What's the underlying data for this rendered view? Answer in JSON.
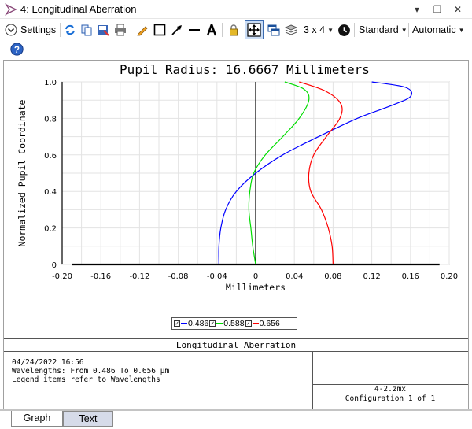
{
  "window": {
    "title": "4: Longitudinal Aberration",
    "controls": {
      "dropdown": "▾",
      "restore": "❐",
      "close": "✕"
    }
  },
  "toolbar": {
    "settings_label": "Settings",
    "layout_label": "3 x 4",
    "style_label": "Standard",
    "scale_label": "Automatic",
    "icons": [
      "settings-chevron",
      "refresh",
      "copy",
      "save",
      "print",
      "pencil",
      "rectangle",
      "arrow",
      "line",
      "text",
      "lock",
      "fit-window",
      "windows",
      "layers",
      "layout-grid",
      "clock",
      "help"
    ]
  },
  "chart_data": {
    "type": "line",
    "title": "Pupil Radius: 16.6667 Millimeters",
    "xlabel": "Millimeters",
    "ylabel": "Normalized Pupil Coordinate",
    "xlim": [
      -0.2,
      0.2
    ],
    "ylim": [
      0,
      1.0
    ],
    "xticks": [
      "-0.20",
      "-0.16",
      "-0.12",
      "-0.08",
      "-0.04",
      "0",
      "0.04",
      "0.08",
      "0.12",
      "0.16",
      "0.20"
    ],
    "yticks": [
      "0",
      "0.2",
      "0.4",
      "0.6",
      "0.8",
      "1.0"
    ],
    "grid": true,
    "legend_position": "bottom-center",
    "series": [
      {
        "name": "0.486",
        "color": "#0000ff",
        "points": [
          [
            -0.038,
            0.0
          ],
          [
            -0.038,
            0.1
          ],
          [
            -0.036,
            0.2
          ],
          [
            -0.031,
            0.3
          ],
          [
            -0.02,
            0.4
          ],
          [
            0.0,
            0.5
          ],
          [
            0.028,
            0.6
          ],
          [
            0.065,
            0.7
          ],
          [
            0.105,
            0.8
          ],
          [
            0.14,
            0.87
          ],
          [
            0.16,
            0.92
          ],
          [
            0.155,
            0.97
          ],
          [
            0.12,
            1.0
          ]
        ]
      },
      {
        "name": "0.588",
        "color": "#00dd00",
        "points": [
          [
            0.0,
            0.0
          ],
          [
            -0.003,
            0.1
          ],
          [
            -0.005,
            0.2
          ],
          [
            -0.007,
            0.3
          ],
          [
            -0.006,
            0.4
          ],
          [
            -0.002,
            0.5
          ],
          [
            0.01,
            0.6
          ],
          [
            0.028,
            0.7
          ],
          [
            0.045,
            0.8
          ],
          [
            0.055,
            0.9
          ],
          [
            0.05,
            0.96
          ],
          [
            0.03,
            1.0
          ]
        ]
      },
      {
        "name": "0.656",
        "color": "#ff0000",
        "points": [
          [
            0.08,
            0.0
          ],
          [
            0.079,
            0.1
          ],
          [
            0.075,
            0.2
          ],
          [
            0.068,
            0.3
          ],
          [
            0.057,
            0.4
          ],
          [
            0.055,
            0.5
          ],
          [
            0.06,
            0.6
          ],
          [
            0.073,
            0.7
          ],
          [
            0.087,
            0.8
          ],
          [
            0.088,
            0.88
          ],
          [
            0.072,
            0.95
          ],
          [
            0.045,
            1.0
          ]
        ]
      }
    ]
  },
  "info": {
    "title": "Longitudinal Aberration",
    "date": "04/24/2022 16:56",
    "wavelengths": "Wavelengths: From 0.486 To 0.656 µm",
    "legend_note": "Legend items refer to Wavelengths",
    "file": "4-2.zmx",
    "config": "Configuration 1 of 1"
  },
  "tabs": {
    "graph": "Graph",
    "text": "Text"
  }
}
